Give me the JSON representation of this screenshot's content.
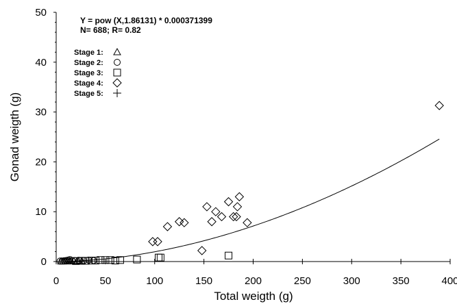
{
  "chart_data": {
    "type": "scatter",
    "title": "",
    "xlabel": "Total weigth (g)",
    "ylabel": "Gonad weigth (g)",
    "xlim": [
      0,
      400
    ],
    "ylim": [
      0,
      50
    ],
    "xticks": [
      0,
      50,
      100,
      150,
      200,
      250,
      300,
      350,
      400
    ],
    "yticks": [
      0,
      10,
      20,
      30,
      40,
      50
    ],
    "grid": false,
    "legend_position": "top-left",
    "annotations": [
      "Y = pow (X,1.86131) * 0.000371399",
      "N= 688; R= 0.82"
    ],
    "fit": {
      "exponent": 1.86131,
      "coefficient": 0.000371399
    },
    "legend": [
      {
        "label": "Stage 1:",
        "marker": "triangle"
      },
      {
        "label": "Stage 2:",
        "marker": "circle"
      },
      {
        "label": "Stage 3:",
        "marker": "square"
      },
      {
        "label": "Stage 4:",
        "marker": "diamond"
      },
      {
        "label": "Stage 5:",
        "marker": "plus"
      }
    ],
    "series": [
      {
        "label": "Stage 1:",
        "marker": "triangle",
        "points": [
          [
            5,
            0.05
          ],
          [
            7,
            0.05
          ],
          [
            9,
            0.08
          ],
          [
            11,
            0.05
          ],
          [
            13,
            0.1
          ],
          [
            15,
            0.08
          ],
          [
            18,
            0.1
          ],
          [
            22,
            0.1
          ],
          [
            26,
            0.1
          ]
        ]
      },
      {
        "label": "Stage 2:",
        "marker": "circle",
        "points": [
          [
            4,
            0.1
          ],
          [
            6,
            0.1
          ],
          [
            8,
            0.15
          ],
          [
            10,
            0.2
          ],
          [
            12,
            0.3
          ],
          [
            14,
            0.4
          ],
          [
            16,
            0.2
          ],
          [
            19,
            0.2
          ],
          [
            23,
            0.25
          ],
          [
            28,
            0.2
          ],
          [
            33,
            0.3
          ],
          [
            38,
            0.2
          ]
        ]
      },
      {
        "label": "Stage 3:",
        "marker": "square",
        "points": [
          [
            20,
            0.1
          ],
          [
            25,
            0.15
          ],
          [
            30,
            0.15
          ],
          [
            36,
            0.2
          ],
          [
            40,
            0.2
          ],
          [
            45,
            0.3
          ],
          [
            50,
            0.3
          ],
          [
            55,
            0.3
          ],
          [
            60,
            0.2
          ],
          [
            65,
            0.3
          ],
          [
            82,
            0.4
          ],
          [
            104,
            0.8
          ],
          [
            106,
            0.8
          ],
          [
            175,
            1.2
          ]
        ]
      },
      {
        "label": "Stage 4:",
        "marker": "diamond",
        "points": [
          [
            98,
            4
          ],
          [
            103,
            4
          ],
          [
            113,
            7
          ],
          [
            125,
            8
          ],
          [
            130,
            7.8
          ],
          [
            148,
            2.2
          ],
          [
            153,
            11
          ],
          [
            158,
            8
          ],
          [
            162,
            10
          ],
          [
            168,
            9
          ],
          [
            175,
            12
          ],
          [
            180,
            9
          ],
          [
            183,
            9
          ],
          [
            184,
            11
          ],
          [
            186,
            13
          ],
          [
            194,
            7.8
          ],
          [
            389,
            31.3
          ]
        ]
      }
    ]
  }
}
